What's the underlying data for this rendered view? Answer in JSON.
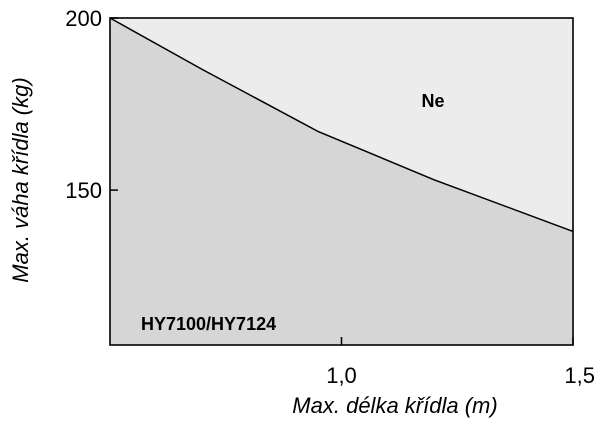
{
  "chart_data": {
    "type": "area",
    "title": "",
    "xlabel": "Max. délka křídla (m)",
    "ylabel": "Max. váha křídla (kg)",
    "xlim": [
      0.5,
      1.5
    ],
    "ylim": [
      105,
      200
    ],
    "x_ticks": [
      {
        "value": 1.0,
        "label": "1,0"
      },
      {
        "value": 1.5,
        "label": "1,5"
      }
    ],
    "y_ticks": [
      {
        "value": 200,
        "label": "200"
      },
      {
        "value": 150,
        "label": "150"
      }
    ],
    "grid": false,
    "series": [
      {
        "x": [
          0.5,
          0.7,
          0.95,
          1.2,
          1.5
        ],
        "y": [
          200,
          185,
          167,
          153,
          138
        ],
        "fill_below": "#d6d6d6",
        "fill_above": "#ececec"
      }
    ],
    "region_labels": {
      "above": "Ne",
      "below": "HY7100/HY7124"
    }
  }
}
